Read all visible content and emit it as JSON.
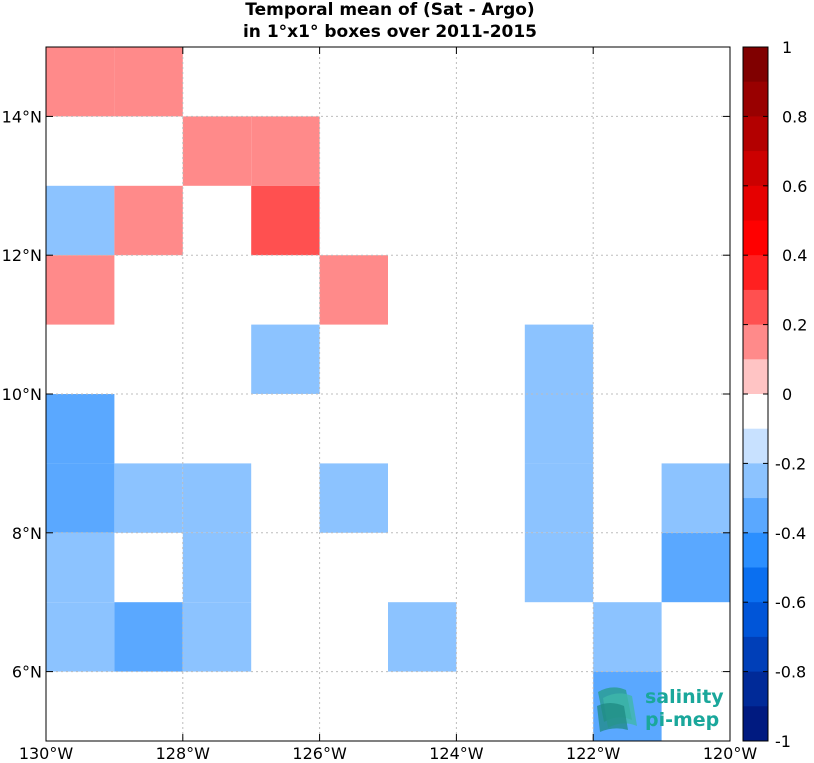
{
  "chart_data": {
    "type": "heatmap",
    "title_lines": [
      "Temporal mean of (Sat - Argo)",
      "in 1°x1° boxes over 2011-2015"
    ],
    "xlabel": "",
    "ylabel": "",
    "xlim": [
      -130,
      -120
    ],
    "ylim": [
      5,
      15
    ],
    "x_ticks": [
      -130,
      -128,
      -126,
      -124,
      -122,
      -120
    ],
    "x_tick_labels": [
      "130°W",
      "128°W",
      "126°W",
      "124°W",
      "122°W",
      "120°W"
    ],
    "y_ticks": [
      6,
      8,
      10,
      12,
      14
    ],
    "y_tick_labels": [
      "6°N",
      "8°N",
      "10°N",
      "12°N",
      "14°N"
    ],
    "grid": true,
    "cell_size_deg": 1,
    "cells": [
      {
        "lon": -130,
        "lat": 14,
        "value": 0.15
      },
      {
        "lon": -129,
        "lat": 14,
        "value": 0.15
      },
      {
        "lon": -128,
        "lat": 13,
        "value": 0.15
      },
      {
        "lon": -127,
        "lat": 13,
        "value": 0.15
      },
      {
        "lon": -130,
        "lat": 12,
        "value": -0.15
      },
      {
        "lon": -129,
        "lat": 12,
        "value": 0.15
      },
      {
        "lon": -127,
        "lat": 12,
        "value": 0.25
      },
      {
        "lon": -130,
        "lat": 11,
        "value": 0.15
      },
      {
        "lon": -126,
        "lat": 11,
        "value": 0.15
      },
      {
        "lon": -127,
        "lat": 10,
        "value": -0.15
      },
      {
        "lon": -123,
        "lat": 10,
        "value": -0.15
      },
      {
        "lon": -130,
        "lat": 9,
        "value": -0.25
      },
      {
        "lon": -123,
        "lat": 9,
        "value": -0.15
      },
      {
        "lon": -130,
        "lat": 8,
        "value": -0.25
      },
      {
        "lon": -129,
        "lat": 8,
        "value": -0.15
      },
      {
        "lon": -128,
        "lat": 8,
        "value": -0.15
      },
      {
        "lon": -126,
        "lat": 8,
        "value": -0.15
      },
      {
        "lon": -123,
        "lat": 8,
        "value": -0.15
      },
      {
        "lon": -121,
        "lat": 8,
        "value": -0.15
      },
      {
        "lon": -130,
        "lat": 7,
        "value": -0.15
      },
      {
        "lon": -128,
        "lat": 7,
        "value": -0.15
      },
      {
        "lon": -123,
        "lat": 7,
        "value": -0.15
      },
      {
        "lon": -121,
        "lat": 7,
        "value": -0.25
      },
      {
        "lon": -130,
        "lat": 6,
        "value": -0.15
      },
      {
        "lon": -129,
        "lat": 6,
        "value": -0.25
      },
      {
        "lon": -128,
        "lat": 6,
        "value": -0.15
      },
      {
        "lon": -125,
        "lat": 6,
        "value": -0.15
      },
      {
        "lon": -122,
        "lat": 6,
        "value": -0.15
      },
      {
        "lon": -122,
        "lat": 5,
        "value": -0.25
      }
    ],
    "colorbar": {
      "range": [
        -1,
        1
      ],
      "ticks": [
        1,
        0.8,
        0.6,
        0.4,
        0.2,
        0,
        -0.2,
        -0.4,
        -0.6,
        -0.8,
        -1
      ],
      "tick_labels": [
        "1",
        "0.8",
        "0.6",
        "0.4",
        "0.2",
        "0",
        "-0.2",
        "-0.4",
        "-0.6",
        "-0.8",
        "-1"
      ],
      "colors_top_to_bottom": [
        "#800000",
        "#990000",
        "#b30000",
        "#cc0000",
        "#e60000",
        "#ff0000",
        "#ff2020",
        "#ff5050",
        "#ff8a8a",
        "#ffc4c4",
        "#ffffff",
        "#ffffff",
        "#c8e1ff",
        "#8cc3ff",
        "#5aa8ff",
        "#2b8fff",
        "#0a6ff0",
        "#0055d8",
        "#003fb8",
        "#002a98",
        "#001a80"
      ]
    }
  },
  "logo": {
    "line1": "salinity",
    "line2": "pi-mep"
  }
}
